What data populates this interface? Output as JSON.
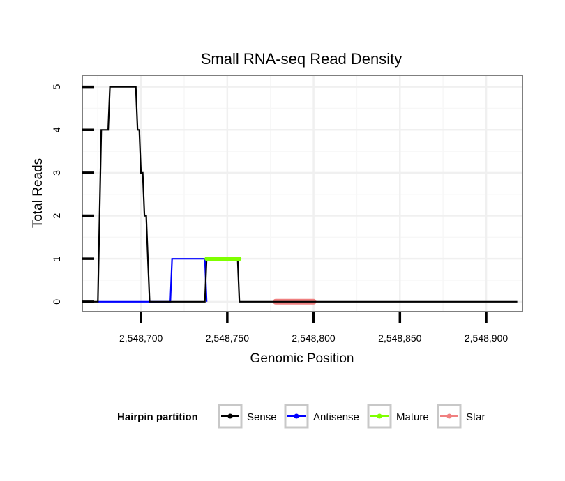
{
  "chart_data": {
    "type": "line",
    "title": "Small RNA-seq Read Density",
    "xlabel": "Genomic Position",
    "ylabel": "Total Reads",
    "xlim": [
      2548666,
      2548921
    ],
    "ylim": [
      -0.23,
      5.27
    ],
    "x_ticks": [
      2548700,
      2548750,
      2548800,
      2548850,
      2548900
    ],
    "x_tick_labels": [
      "2,548,700",
      "2,548,750",
      "2,548,800",
      "2,548,850",
      "2,548,900"
    ],
    "y_ticks": [
      0,
      1,
      2,
      3,
      4,
      5
    ],
    "y_tick_labels": [
      "0",
      "1",
      "2",
      "3",
      "4",
      "5"
    ],
    "grid": true,
    "legend": {
      "title": "Hairpin partition",
      "position": "bottom",
      "entries": [
        "Sense",
        "Antisense",
        "Mature",
        "Star"
      ]
    },
    "series": [
      {
        "name": "Sense",
        "color": "#000000",
        "x": [
          2548667,
          2548675,
          2548676,
          2548677,
          2548681,
          2548682,
          2548687,
          2548690,
          2548697,
          2548698,
          2548699,
          2548700,
          2548701,
          2548702,
          2548703,
          2548704,
          2548705,
          2548737,
          2548738,
          2548756,
          2548757,
          2548918
        ],
        "y": [
          0,
          0,
          2,
          4,
          4,
          5,
          5,
          5,
          5,
          4,
          4,
          3,
          3,
          2,
          2,
          1,
          0,
          0,
          1,
          1,
          0,
          0
        ]
      },
      {
        "name": "Antisense",
        "color": "#0000FF",
        "x": [
          2548675,
          2548717,
          2548718,
          2548737,
          2548738
        ],
        "y": [
          0,
          0,
          1,
          1,
          0
        ]
      },
      {
        "name": "Mature",
        "color": "#7FFF00",
        "x": [
          2548738,
          2548757
        ],
        "y": [
          1,
          1
        ]
      },
      {
        "name": "Star",
        "color": "#F08080",
        "x": [
          2548778,
          2548800
        ],
        "y": [
          0,
          0
        ]
      }
    ]
  }
}
